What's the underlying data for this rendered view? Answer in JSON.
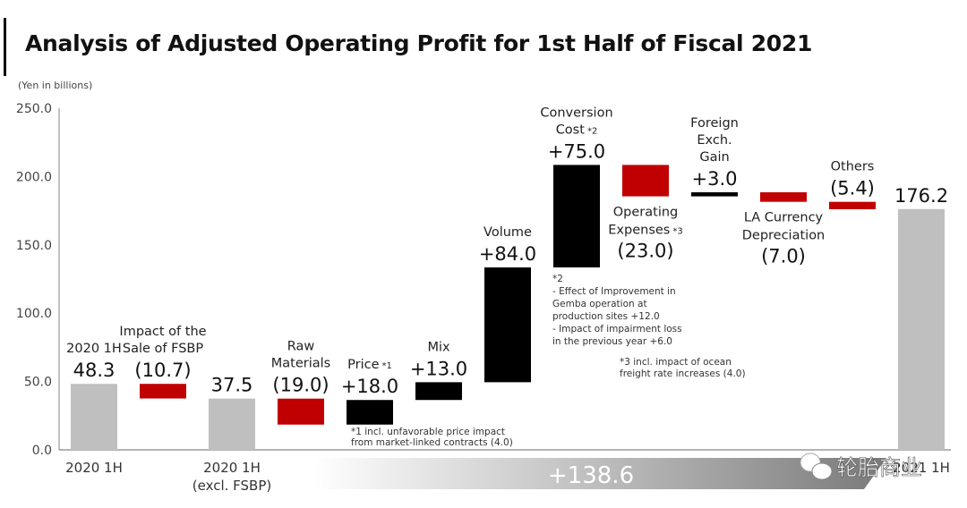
{
  "title": "Analysis of Adjusted Operating Profit for 1st Half of Fiscal 2021",
  "unit_label": "(Yen in billions)",
  "colors": {
    "total": "#BFBFBF",
    "increase": "#000000",
    "decrease": "#C00000",
    "band_start": "#FFFFFF",
    "band_end": "#7A7A7A"
  },
  "watermark": "轮胎商业",
  "chart_data": {
    "type": "bar",
    "subtype": "waterfall",
    "title": "Analysis of Adjusted Operating Profit for 1st Half of Fiscal 2021",
    "ylabel": "(Yen in billions)",
    "ylim": [
      0,
      250
    ],
    "yticks": [
      "0.0",
      "50.0",
      "100.0",
      "150.0",
      "200.0",
      "250.0"
    ],
    "grid": false,
    "steps": [
      {
        "kind": "total",
        "label": [
          "2020 1H"
        ],
        "axis_label": [
          "2020 1H"
        ],
        "value": 48.3,
        "value_text": "48.3"
      },
      {
        "kind": "decrease",
        "label": [
          "Impact of the",
          "Sale of FSBP"
        ],
        "value": -10.7,
        "value_text": "(10.7)"
      },
      {
        "kind": "total",
        "label": [],
        "axis_label": [
          "2020 1H",
          "(excl. FSBP)"
        ],
        "value": 37.5,
        "value_text": "37.5"
      },
      {
        "kind": "decrease",
        "label": [
          "Raw",
          "Materials"
        ],
        "value": -19.0,
        "value_text": "(19.0)"
      },
      {
        "kind": "increase",
        "label": [
          "Price"
        ],
        "sup": "*1",
        "value": 18.0,
        "value_text": "+18.0"
      },
      {
        "kind": "increase",
        "label": [
          "Mix"
        ],
        "value": 13.0,
        "value_text": "+13.0"
      },
      {
        "kind": "increase",
        "label": [
          "Volume"
        ],
        "value": 84.0,
        "value_text": "+84.0"
      },
      {
        "kind": "increase",
        "label": [
          "Conversion",
          "Cost"
        ],
        "sup": "*2",
        "value": 75.0,
        "value_text": "+75.0"
      },
      {
        "kind": "decrease",
        "label": [
          "Operating",
          "Expenses"
        ],
        "sup": "*3",
        "value": -23.0,
        "value_text": "(23.0)"
      },
      {
        "kind": "increase",
        "label": [
          "Foreign",
          "Exch.",
          "Gain"
        ],
        "value": 3.0,
        "value_text": "+3.0"
      },
      {
        "kind": "decrease",
        "label": [
          "LA Currency",
          "Depreciation"
        ],
        "value": -7.0,
        "value_text": "(7.0)"
      },
      {
        "kind": "decrease",
        "label": [
          "Others"
        ],
        "value": -5.4,
        "value_text": "(5.4)"
      },
      {
        "kind": "total",
        "label": [],
        "axis_label": [
          "2021 1H"
        ],
        "value": 176.2,
        "value_text": "176.2"
      }
    ],
    "annotations": {
      "note1": [
        "*1 incl. unfavorable price impact",
        "from market-linked contracts (4.0)"
      ],
      "note2": [
        "*2",
        " - Effect of Improvement in",
        "Gemba operation at",
        "production sites +12.0",
        " - Impact of impairment loss",
        "in the previous year +6.0"
      ],
      "note3": [
        "*3 incl. impact of ocean",
        "freight rate increases (4.0)"
      ]
    },
    "total_change": "+138.6"
  }
}
